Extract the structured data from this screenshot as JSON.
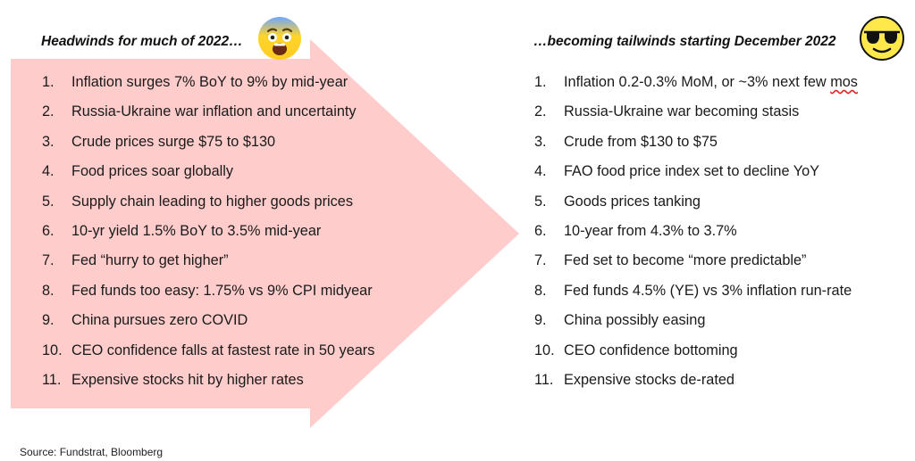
{
  "left": {
    "heading": "Headwinds for much of 2022…",
    "emoji": "shocked-face-emoji",
    "items": [
      {
        "num": "1.",
        "text": "Inflation surges 7% BoY to 9% by mid-year"
      },
      {
        "num": "2.",
        "text": "Russia-Ukraine war inflation and uncertainty"
      },
      {
        "num": "3.",
        "text": "Crude prices surge $75 to $130"
      },
      {
        "num": "4.",
        "text": "Food prices soar globally"
      },
      {
        "num": "5.",
        "text": "Supply chain leading to higher goods prices"
      },
      {
        "num": "6.",
        "text": "10-yr yield 1.5% BoY to 3.5% mid-year"
      },
      {
        "num": "7.",
        "text": "Fed “hurry to get higher”"
      },
      {
        "num": "8.",
        "text": "Fed funds too easy: 1.75% vs 9% CPI midyear"
      },
      {
        "num": "9.",
        "text": "China pursues zero COVID"
      },
      {
        "num": "10.",
        "text": "CEO confidence falls at fastest rate in 50 years"
      },
      {
        "num": "11.",
        "text": "Expensive stocks hit by higher rates"
      }
    ]
  },
  "right": {
    "heading": "…becoming tailwinds starting December 2022",
    "emoji": "sunglasses-face-emoji",
    "items": [
      {
        "num": "1.",
        "text": "Inflation 0.2-0.3% MoM, or ~3% next few ",
        "tail": "mos"
      },
      {
        "num": "2.",
        "text": "Russia-Ukraine war becoming stasis"
      },
      {
        "num": "3.",
        "text": "Crude from $130 to $75"
      },
      {
        "num": "4.",
        "text": "FAO food price index set to decline YoY"
      },
      {
        "num": "5.",
        "text": "Goods prices tanking"
      },
      {
        "num": "6.",
        "text": "10-year from 4.3% to 3.7%"
      },
      {
        "num": "7.",
        "text": "Fed set to become “more predictable”"
      },
      {
        "num": "8.",
        "text": "Fed funds 4.5% (YE) vs 3% inflation run-rate"
      },
      {
        "num": "9.",
        "text": "China possibly easing"
      },
      {
        "num": "10.",
        "text": "CEO confidence bottoming"
      },
      {
        "num": "11.",
        "text": "Expensive stocks de-rated"
      }
    ]
  },
  "source": "Source: Fundstrat, Bloomberg",
  "colors": {
    "arrow": "#ffcccc",
    "emoji_yellow": "#ffd42a"
  }
}
